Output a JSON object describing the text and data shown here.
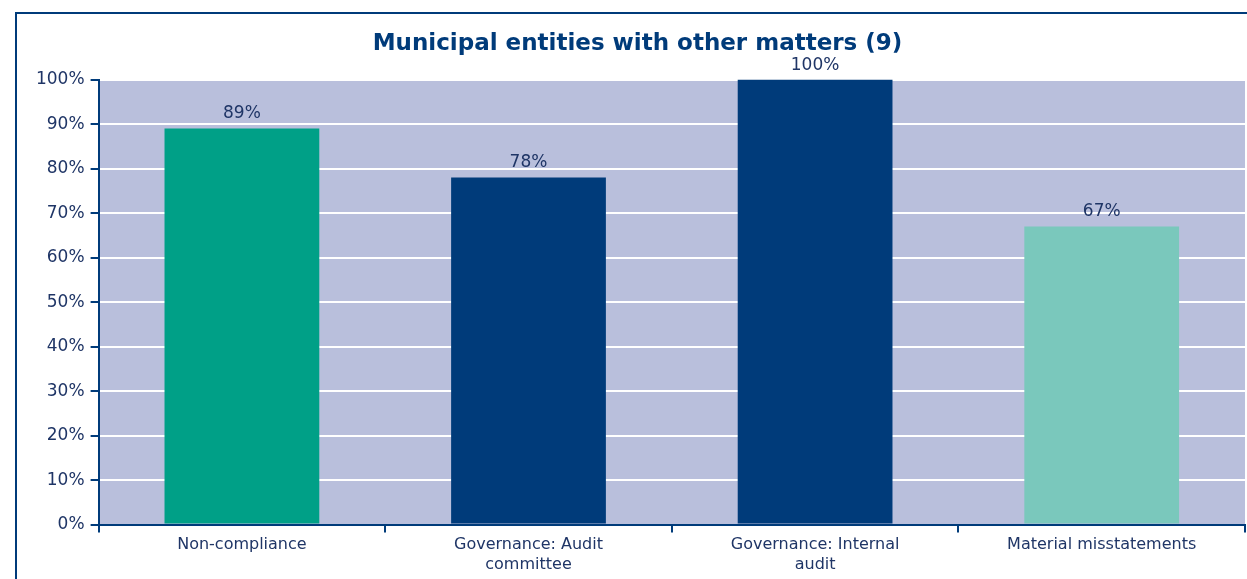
{
  "chart_data": {
    "type": "bar",
    "title": "Municipal entities with other matters (9)",
    "categories": [
      "Non-compliance",
      "Governance: Audit committee",
      "Governance: Internal audit",
      "Material misstatements"
    ],
    "values": [
      89,
      78,
      100,
      67
    ],
    "colors": [
      "#00a087",
      "#003b7a",
      "#003b7a",
      "#7ac8bc"
    ],
    "value_labels": [
      "89%",
      "78%",
      "100%",
      "67%"
    ],
    "ylim": [
      0,
      100
    ],
    "yticks": [
      {
        "value": 0,
        "label": "0%"
      },
      {
        "value": 10,
        "label": "10%"
      },
      {
        "value": 20,
        "label": "20%"
      },
      {
        "value": 30,
        "label": "30%"
      },
      {
        "value": 40,
        "label": "40%"
      },
      {
        "value": 50,
        "label": "50%"
      },
      {
        "value": 60,
        "label": "60%"
      },
      {
        "value": 70,
        "label": "70%"
      },
      {
        "value": 80,
        "label": "80%"
      },
      {
        "value": 90,
        "label": "90%"
      },
      {
        "value": 100,
        "label": "100%"
      }
    ],
    "grid": "y",
    "legend": false
  }
}
